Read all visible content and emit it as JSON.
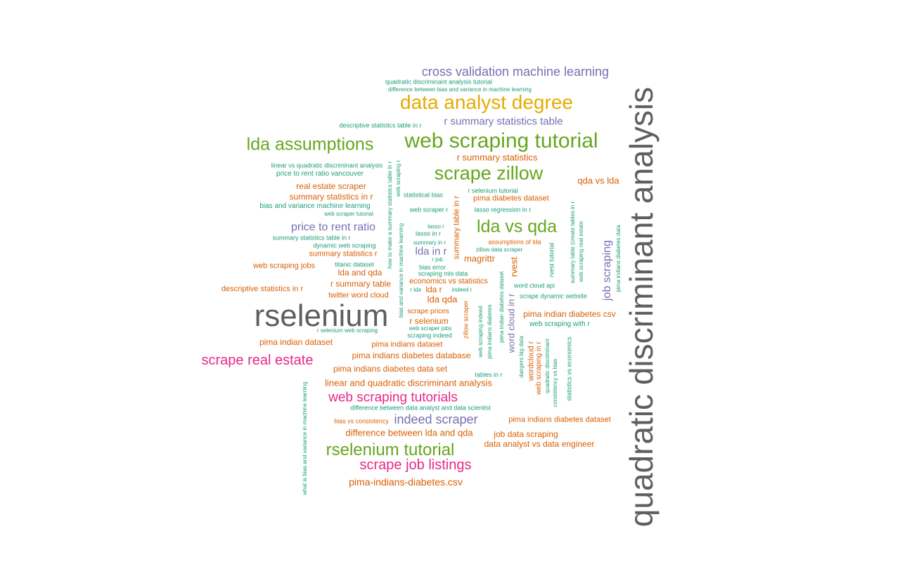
{
  "palette": {
    "gray": "#5f5f5f",
    "orange": "#d95f02",
    "teal": "#1b9e77",
    "purple": "#7570b3",
    "green": "#66a61e",
    "magenta": "#e7298a",
    "gold": "#e6ab02"
  },
  "words": [
    {
      "text": "quadratic discriminant analysis",
      "color": "gray"
    },
    {
      "text": "rselenium",
      "color": "gray"
    },
    {
      "text": "data analyst degree",
      "color": "gold"
    },
    {
      "text": "web scraping tutorial",
      "color": "green"
    },
    {
      "text": "scrape zillow",
      "color": "green"
    },
    {
      "text": "lda vs qda",
      "color": "green"
    },
    {
      "text": "lda assumptions",
      "color": "green"
    },
    {
      "text": "rselenium tutorial",
      "color": "green"
    },
    {
      "text": "cross validation machine learning",
      "color": "purple"
    },
    {
      "text": "r summary statistics table",
      "color": "purple"
    },
    {
      "text": "scrape real estate",
      "color": "magenta"
    },
    {
      "text": "web scraping tutorials",
      "color": "magenta"
    },
    {
      "text": "scrape job listings",
      "color": "magenta"
    },
    {
      "text": "indeed scraper",
      "color": "purple"
    },
    {
      "text": "price to rent ratio",
      "color": "purple"
    },
    {
      "text": "job scraping",
      "color": "purple"
    },
    {
      "text": "lda in r",
      "color": "purple"
    },
    {
      "text": "word cloud in r",
      "color": "purple"
    },
    {
      "text": "quadratic discriminant analysis tutorial",
      "color": "teal"
    },
    {
      "text": "difference between bias and variance in machine learning",
      "color": "teal"
    },
    {
      "text": "descriptive statistics table in r",
      "color": "teal"
    },
    {
      "text": "r summary statistics",
      "color": "orange"
    },
    {
      "text": "linear vs quadratic discriminant analysis",
      "color": "teal"
    },
    {
      "text": "price to rent ratio vancouver",
      "color": "teal"
    },
    {
      "text": "real estate scraper",
      "color": "orange"
    },
    {
      "text": "summary statistics in r",
      "color": "orange"
    },
    {
      "text": "bias and variance machine learning",
      "color": "teal"
    },
    {
      "text": "web scraper tutorial",
      "color": "teal"
    },
    {
      "text": "qda vs lda",
      "color": "orange"
    },
    {
      "text": "r selenium tutorial",
      "color": "teal"
    },
    {
      "text": "pima diabetes dataset",
      "color": "orange"
    },
    {
      "text": "statistical bias",
      "color": "teal"
    },
    {
      "text": "web scraper r",
      "color": "teal"
    },
    {
      "text": "lasso regression in r",
      "color": "teal"
    },
    {
      "text": "lasso r",
      "color": "teal"
    },
    {
      "text": "lasso in r",
      "color": "teal"
    },
    {
      "text": "summary in r",
      "color": "teal"
    },
    {
      "text": "summary statistics table in r",
      "color": "teal"
    },
    {
      "text": "dynamic web scraping",
      "color": "teal"
    },
    {
      "text": "summary statistics r",
      "color": "orange"
    },
    {
      "text": "assumptions of lda",
      "color": "orange"
    },
    {
      "text": "zillow data scraper",
      "color": "teal"
    },
    {
      "text": "r job",
      "color": "teal"
    },
    {
      "text": "magrittr",
      "color": "orange"
    },
    {
      "text": "titanic dataset",
      "color": "teal"
    },
    {
      "text": "web scraping jobs",
      "color": "orange"
    },
    {
      "text": "bias error",
      "color": "teal"
    },
    {
      "text": "lda and qda",
      "color": "orange"
    },
    {
      "text": "scraping mls data",
      "color": "teal"
    },
    {
      "text": "economics vs statistics",
      "color": "orange"
    },
    {
      "text": "r summary table",
      "color": "orange"
    },
    {
      "text": "descriptive statistics in r",
      "color": "orange"
    },
    {
      "text": "r lda",
      "color": "teal"
    },
    {
      "text": "lda r",
      "color": "orange"
    },
    {
      "text": "indeed r",
      "color": "teal"
    },
    {
      "text": "word cloud api",
      "color": "teal"
    },
    {
      "text": "twitter word cloud",
      "color": "orange"
    },
    {
      "text": "lda qda",
      "color": "orange"
    },
    {
      "text": "scrape dynamic website",
      "color": "teal"
    },
    {
      "text": "scrape prices",
      "color": "orange"
    },
    {
      "text": "pima indian diabetes csv",
      "color": "orange"
    },
    {
      "text": "r selenium",
      "color": "orange"
    },
    {
      "text": "web scraping with r",
      "color": "teal"
    },
    {
      "text": "web scraper jobs",
      "color": "teal"
    },
    {
      "text": "r selenium web scraping",
      "color": "teal"
    },
    {
      "text": "scraping indeed",
      "color": "teal"
    },
    {
      "text": "pima indian dataset",
      "color": "orange"
    },
    {
      "text": "pima indians dataset",
      "color": "orange"
    },
    {
      "text": "pima indians diabetes database",
      "color": "orange"
    },
    {
      "text": "pima indians diabetes data set",
      "color": "orange"
    },
    {
      "text": "linear and quadratic discriminant analysis",
      "color": "orange"
    },
    {
      "text": "tables in r",
      "color": "teal"
    },
    {
      "text": "difference between data analyst and data scientist",
      "color": "teal"
    },
    {
      "text": "bias vs consistency",
      "color": "orange"
    },
    {
      "text": "pima indians diabetes dataset",
      "color": "orange"
    },
    {
      "text": "difference between lda and qda",
      "color": "orange"
    },
    {
      "text": "job data scraping",
      "color": "orange"
    },
    {
      "text": "data analyst vs data engineer",
      "color": "orange"
    },
    {
      "text": "pima-indians-diabetes.csv",
      "color": "orange"
    },
    {
      "text": "what is bias and variance in machine learning",
      "color": "teal"
    },
    {
      "text": "how to make a summary statistics table in r",
      "color": "teal"
    },
    {
      "text": "bias and variance in machine learning",
      "color": "teal"
    },
    {
      "text": "web scraping r",
      "color": "teal"
    },
    {
      "text": "summary table in r",
      "color": "orange"
    },
    {
      "text": "zillow scraper",
      "color": "orange"
    },
    {
      "text": "web scraping indeed",
      "color": "teal"
    },
    {
      "text": "pima indians diabetes",
      "color": "teal"
    },
    {
      "text": "pima indian diabetes dataset",
      "color": "teal"
    },
    {
      "text": "rvest",
      "color": "orange"
    },
    {
      "text": "rvest tutorial",
      "color": "teal"
    },
    {
      "text": "dangers big data",
      "color": "teal"
    },
    {
      "text": "wordcloud r",
      "color": "orange"
    },
    {
      "text": "web scraping in r",
      "color": "orange"
    },
    {
      "text": "quadratic discriminant",
      "color": "teal"
    },
    {
      "text": "consistency vs bias",
      "color": "teal"
    },
    {
      "text": "statistics vs economics",
      "color": "teal"
    },
    {
      "text": "summary table (create tables in r",
      "color": "teal"
    },
    {
      "text": "web scraping real estate",
      "color": "teal"
    },
    {
      "text": "pima indians diabetes data",
      "color": "teal"
    }
  ]
}
